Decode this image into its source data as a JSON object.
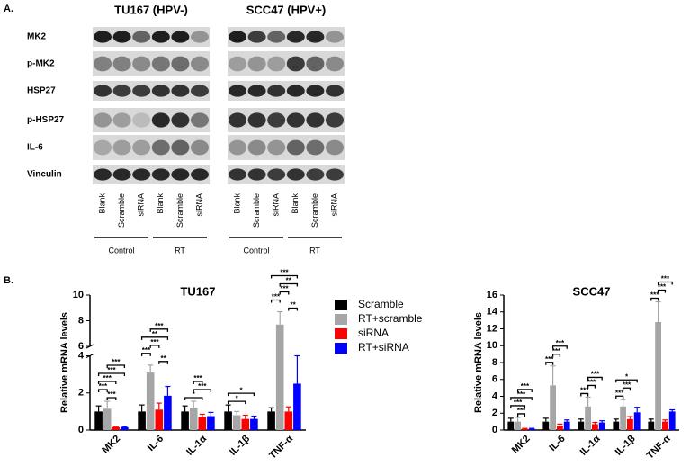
{
  "panel_a": {
    "label": "A.",
    "rows": [
      "MK2",
      "p-MK2",
      "HSP27",
      "p-HSP27",
      "IL-6",
      "Vinculin"
    ],
    "groups": [
      {
        "title": "TU167 (HPV-)",
        "lanes": [
          "Blank",
          "Scramble",
          "siRNA",
          "Blank",
          "Scramble",
          "siRNA"
        ],
        "conditions": [
          "Control",
          "RT"
        ]
      },
      {
        "title": "SCC47 (HPV+)",
        "lanes": [
          "Blank",
          "Scramble",
          "siRNA",
          "Blank",
          "Scramble",
          "siRNA"
        ],
        "conditions": [
          "Control",
          "RT"
        ]
      }
    ]
  },
  "panel_label_b": "B.",
  "chart_data": [
    {
      "type": "bar",
      "title": "TU167",
      "y_label": "Relative mRNA levels",
      "categories": [
        "MK2",
        "IL-6",
        "IL-1α",
        "IL-1β",
        "TNF-α"
      ],
      "ylim": [
        0,
        10
      ],
      "ybreak": [
        4,
        6
      ],
      "yticks": [
        0,
        2,
        4,
        6,
        8,
        10
      ],
      "series": [
        {
          "name": "Scramble",
          "color": "#000000",
          "values": [
            1.0,
            1.0,
            1.0,
            1.0,
            1.0
          ],
          "errors": [
            0.3,
            0.35,
            0.3,
            0.35,
            0.2
          ]
        },
        {
          "name": "RT+scramble",
          "color": "#a6a6a6",
          "values": [
            1.15,
            3.1,
            1.2,
            0.8,
            7.7
          ],
          "errors": [
            0.4,
            0.4,
            0.35,
            0.2,
            1.0
          ]
        },
        {
          "name": "siRNA",
          "color": "#ff0000",
          "values": [
            0.15,
            1.1,
            0.7,
            0.6,
            1.0
          ],
          "errors": [
            0.03,
            0.35,
            0.15,
            0.2,
            0.25
          ]
        },
        {
          "name": "RT+siRNA",
          "color": "#0000ff",
          "values": [
            0.15,
            1.85,
            0.75,
            0.6,
            2.5
          ],
          "errors": [
            0.03,
            0.5,
            0.2,
            0.15,
            1.5
          ]
        }
      ],
      "significance": [
        {
          "category": 0,
          "between": [
            1,
            2
          ],
          "label": "***"
        },
        {
          "category": 0,
          "between": [
            0,
            1
          ],
          "label": "***"
        },
        {
          "category": 0,
          "between": [
            0,
            2
          ],
          "label": "***"
        },
        {
          "category": 0,
          "between": [
            0,
            3
          ],
          "label": "***"
        },
        {
          "category": 0,
          "between": [
            1,
            3
          ],
          "label": "***"
        },
        {
          "category": 1,
          "between": [
            2,
            3
          ],
          "label": "**"
        },
        {
          "category": 1,
          "between": [
            0,
            1
          ],
          "label": "***"
        },
        {
          "category": 1,
          "between": [
            1,
            2
          ],
          "label": "***"
        },
        {
          "category": 1,
          "between": [
            0,
            3
          ],
          "label": "**"
        },
        {
          "category": 1,
          "between": [
            1,
            3
          ],
          "label": "***"
        },
        {
          "category": 2,
          "between": [
            0,
            2
          ],
          "label": "*"
        },
        {
          "category": 2,
          "between": [
            1,
            3
          ],
          "label": "***"
        },
        {
          "category": 2,
          "between": [
            1,
            2
          ],
          "label": "***"
        },
        {
          "category": 3,
          "between": [
            0,
            2
          ],
          "label": "*"
        },
        {
          "category": 3,
          "between": [
            0,
            3
          ],
          "label": "*"
        },
        {
          "category": 4,
          "between": [
            2,
            3
          ],
          "label": "**"
        },
        {
          "category": 4,
          "between": [
            0,
            1
          ],
          "label": "***"
        },
        {
          "category": 4,
          "between": [
            1,
            2
          ],
          "label": "***"
        },
        {
          "category": 4,
          "between": [
            1,
            3
          ],
          "label": "**"
        },
        {
          "category": 4,
          "between": [
            0,
            3
          ],
          "label": "***"
        }
      ]
    },
    {
      "type": "bar",
      "title": "SCC47",
      "y_label": "Relative mRNA levels",
      "categories": [
        "MK2",
        "IL-6",
        "IL-1α",
        "IL-1β",
        "TNF-α"
      ],
      "ylim": [
        0,
        16
      ],
      "yticks": [
        0,
        2,
        4,
        6,
        8,
        10,
        12,
        14,
        16
      ],
      "series": [
        {
          "name": "Scramble",
          "color": "#000000",
          "values": [
            1.0,
            1.0,
            1.0,
            1.0,
            1.0
          ],
          "errors": [
            0.4,
            0.4,
            0.3,
            0.3,
            0.3
          ]
        },
        {
          "name": "RT+scramble",
          "color": "#a6a6a6",
          "values": [
            1.0,
            5.3,
            2.8,
            2.8,
            12.8
          ],
          "errors": [
            0.5,
            2.3,
            1.1,
            0.8,
            2.4
          ]
        },
        {
          "name": "siRNA",
          "color": "#ff0000",
          "values": [
            0.15,
            0.5,
            0.7,
            1.3,
            1.0
          ],
          "errors": [
            0.05,
            0.2,
            0.2,
            0.3,
            0.2
          ]
        },
        {
          "name": "RT+siRNA",
          "color": "#0000ff",
          "values": [
            0.15,
            1.0,
            0.9,
            2.1,
            2.2
          ],
          "errors": [
            0.05,
            0.2,
            0.2,
            0.6,
            0.2
          ]
        }
      ],
      "significance": [
        {
          "category": 0,
          "between": [
            1,
            2
          ],
          "label": "***"
        },
        {
          "category": 0,
          "between": [
            0,
            2
          ],
          "label": "***"
        },
        {
          "category": 0,
          "between": [
            0,
            3
          ],
          "label": "***"
        },
        {
          "category": 0,
          "between": [
            1,
            3
          ],
          "label": "***"
        },
        {
          "category": 1,
          "between": [
            0,
            1
          ],
          "label": "***"
        },
        {
          "category": 1,
          "between": [
            1,
            2
          ],
          "label": "***"
        },
        {
          "category": 1,
          "between": [
            1,
            3
          ],
          "label": "***"
        },
        {
          "category": 2,
          "between": [
            0,
            1
          ],
          "label": "***"
        },
        {
          "category": 2,
          "between": [
            1,
            2
          ],
          "label": "***"
        },
        {
          "category": 2,
          "between": [
            1,
            3
          ],
          "label": "***"
        },
        {
          "category": 3,
          "between": [
            0,
            1
          ],
          "label": "***"
        },
        {
          "category": 3,
          "between": [
            1,
            2
          ],
          "label": "***"
        },
        {
          "category": 3,
          "between": [
            0,
            3
          ],
          "label": "*"
        },
        {
          "category": 4,
          "between": [
            0,
            1
          ],
          "label": "***"
        },
        {
          "category": 4,
          "between": [
            1,
            2
          ],
          "label": "***"
        },
        {
          "category": 4,
          "between": [
            1,
            3
          ],
          "label": "***"
        }
      ]
    }
  ]
}
